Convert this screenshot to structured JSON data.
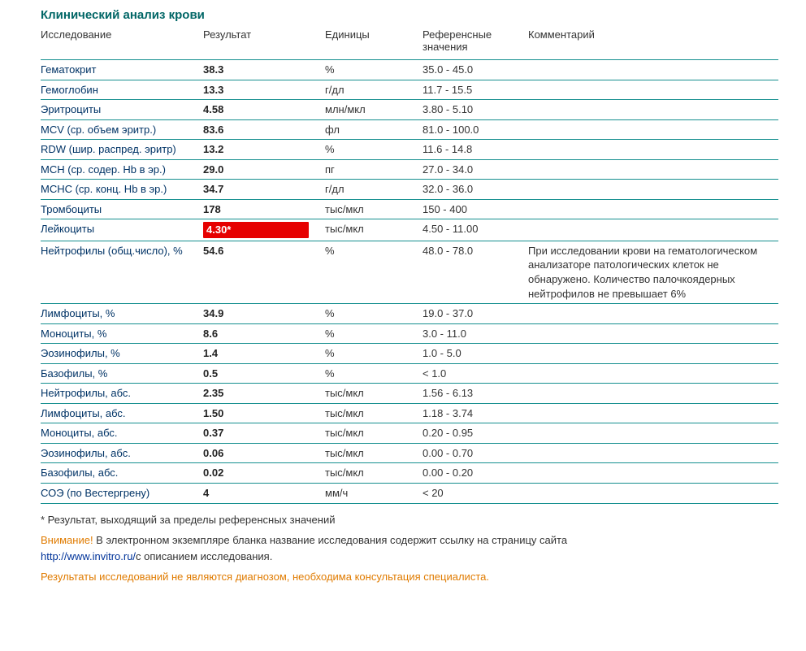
{
  "colors": {
    "border": "#158f8f",
    "title": "#006666",
    "test_name": "#003366",
    "flag_bg": "#e60000",
    "flag_text": "#ffffff",
    "orange": "#e07b00",
    "link": "#003399"
  },
  "title": "Клинический анализ крови",
  "headers": {
    "test": "Исследование",
    "result": "Результат",
    "unit": "Единицы",
    "ref": "Референсные значения",
    "comment": "Комментарий"
  },
  "rows": [
    {
      "test": "Гематокрит",
      "result": "38.3",
      "unit": "%",
      "ref": "35.0 - 45.0",
      "comment": "",
      "flag": false
    },
    {
      "test": "Гемоглобин",
      "result": "13.3",
      "unit": "г/дл",
      "ref": "11.7 - 15.5",
      "comment": "",
      "flag": false
    },
    {
      "test": "Эритроциты",
      "result": "4.58",
      "unit": "млн/мкл",
      "ref": "3.80 - 5.10",
      "comment": "",
      "flag": false
    },
    {
      "test": "MCV (ср. объем эритр.)",
      "result": "83.6",
      "unit": "фл",
      "ref": "81.0 - 100.0",
      "comment": "",
      "flag": false
    },
    {
      "test": "RDW (шир. распред. эритр)",
      "result": "13.2",
      "unit": "%",
      "ref": "11.6 - 14.8",
      "comment": "",
      "flag": false
    },
    {
      "test": "MCH (ср. содер. Hb в эр.)",
      "result": "29.0",
      "unit": "пг",
      "ref": "27.0 - 34.0",
      "comment": "",
      "flag": false
    },
    {
      "test": "MCHC (ср. конц. Hb в эр.)",
      "result": "34.7",
      "unit": "г/дл",
      "ref": "32.0 - 36.0",
      "comment": "",
      "flag": false
    },
    {
      "test": "Тромбоциты",
      "result": "178",
      "unit": "тыс/мкл",
      "ref": "150 - 400",
      "comment": "",
      "flag": false
    },
    {
      "test": "Лейкоциты",
      "result": "4.30*",
      "unit": "тыс/мкл",
      "ref": "4.50 - 11.00",
      "comment": "",
      "flag": true
    },
    {
      "test": "Нейтрофилы (общ.число), %",
      "result": "54.6",
      "unit": "%",
      "ref": "48.0 - 78.0",
      "comment": "При исследовании крови на гематологическом анализаторе патологических клеток не обнаружено. Количество палочкоядерных нейтрофилов не превышает 6%",
      "flag": false
    },
    {
      "test": "Лимфоциты, %",
      "result": "34.9",
      "unit": "%",
      "ref": "19.0 - 37.0",
      "comment": "",
      "flag": false
    },
    {
      "test": "Моноциты, %",
      "result": "8.6",
      "unit": "%",
      "ref": "3.0 - 11.0",
      "comment": "",
      "flag": false
    },
    {
      "test": "Эозинофилы, %",
      "result": "1.4",
      "unit": "%",
      "ref": "1.0 - 5.0",
      "comment": "",
      "flag": false
    },
    {
      "test": "Базофилы, %",
      "result": "0.5",
      "unit": "%",
      "ref": "< 1.0",
      "comment": "",
      "flag": false
    },
    {
      "test": "Нейтрофилы, абс.",
      "result": "2.35",
      "unit": "тыс/мкл",
      "ref": "1.56 - 6.13",
      "comment": "",
      "flag": false
    },
    {
      "test": "Лимфоциты, абс.",
      "result": "1.50",
      "unit": "тыс/мкл",
      "ref": "1.18 - 3.74",
      "comment": "",
      "flag": false
    },
    {
      "test": "Моноциты, абс.",
      "result": "0.37",
      "unit": "тыс/мкл",
      "ref": "0.20 - 0.95",
      "comment": "",
      "flag": false
    },
    {
      "test": "Эозинофилы, абс.",
      "result": "0.06",
      "unit": "тыс/мкл",
      "ref": "0.00 - 0.70",
      "comment": "",
      "flag": false
    },
    {
      "test": "Базофилы, абс.",
      "result": "0.02",
      "unit": "тыс/мкл",
      "ref": "0.00 - 0.20",
      "comment": "",
      "flag": false
    },
    {
      "test": "СОЭ (по Вестергрену)",
      "result": "4",
      "unit": "мм/ч",
      "ref": "< 20",
      "comment": "",
      "flag": false
    }
  ],
  "notes": {
    "asterisk": "* Результат, выходящий за пределы референсных значений",
    "attention_label": "Внимание!",
    "attention_text": " В электронном экземпляре бланка название исследования содержит ссылку на страницу сайта ",
    "attention_link": "http://www.invitro.ru/",
    "attention_tail": "с описанием исследования.",
    "disclaimer": "Результаты исследований не являются диагнозом, необходима консультация специалиста."
  }
}
